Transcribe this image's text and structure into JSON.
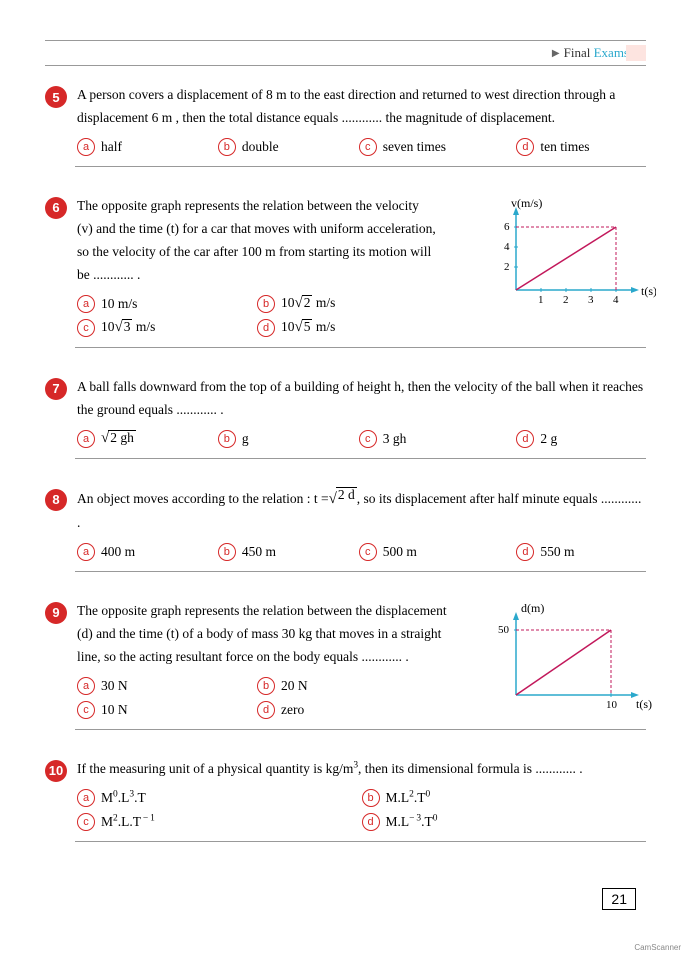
{
  "header": {
    "final": "Final",
    "exams": "Exams"
  },
  "q5": {
    "num": "5",
    "text": "A person covers a displacement of 8 m to the east direction and returned to west direction through a displacement 6 m , then the total distance equals ............ the magnitude of displacement.",
    "a": "half",
    "b": "double",
    "c": "seven times",
    "d": "ten times"
  },
  "q6": {
    "num": "6",
    "text": "The opposite graph represents the relation between the velocity (v) and the time (t) for a car that moves with uniform acceleration, so the velocity of the car after 100 m from starting its motion will be ............ .",
    "a_pre": "10 m/s",
    "b_pre": "10",
    "b_rad": "2",
    "b_post": " m/s",
    "c_pre": "10",
    "c_rad": "3",
    "c_post": " m/s",
    "d_pre": "10",
    "d_rad": "5",
    "d_post": " m/s",
    "graph": {
      "ylabel": "v(m/s)",
      "xlabel": "t(s)",
      "yticks": [
        "6",
        "4",
        "2"
      ],
      "xticks": [
        "1",
        "2",
        "3",
        "4"
      ],
      "line_color": "#c2185b",
      "dash_color": "#c2185b",
      "axis_color": "#2aa8cc",
      "x_max": 4,
      "y_max": 6
    }
  },
  "q7": {
    "num": "7",
    "text": "A ball falls downward from the top of a building of height h, then the velocity of the ball when it reaches the ground equals ............ .",
    "a_rad": "2 gh",
    "b": "g",
    "c": "3 gh",
    "d": "2 g"
  },
  "q8": {
    "num": "8",
    "text_pre": "An object moves according to the relation : t =",
    "text_rad": "2 d",
    "text_post": ", so its displacement after half minute equals ............ .",
    "a": "400 m",
    "b": "450 m",
    "c": "500 m",
    "d": "550 m"
  },
  "q9": {
    "num": "9",
    "text": "The opposite graph represents the relation between the displacement (d) and the time (t) of a body of mass 30 kg that moves in a straight line, so the acting resultant force on the body equals ............ .",
    "a": "30 N",
    "b": "20 N",
    "c": "10 N",
    "d": "zero",
    "graph": {
      "ylabel": "d(m)",
      "xlabel": "t(s)",
      "ytick": "50",
      "xtick": "10",
      "line_color": "#c2185b",
      "dash_color": "#c2185b",
      "axis_color": "#2aa8cc",
      "x_max": 10,
      "y_max": 50
    }
  },
  "q10": {
    "num": "10",
    "text_pre": "If the measuring unit of a physical quantity is kg/m",
    "text_sup": "3",
    "text_post": ", then its dimensional formula is ............ .",
    "a": "M<sup>0</sup>.L<sup>3</sup>.T",
    "b": "M.L<sup>2</sup>.T<sup>0</sup>",
    "c": "M<sup>2</sup>.L.T<sup> − 1</sup>",
    "d": "M.L<sup>− 3</sup>.T<sup>0</sup>"
  },
  "pagenum": "21",
  "camscan": "CamScanner"
}
